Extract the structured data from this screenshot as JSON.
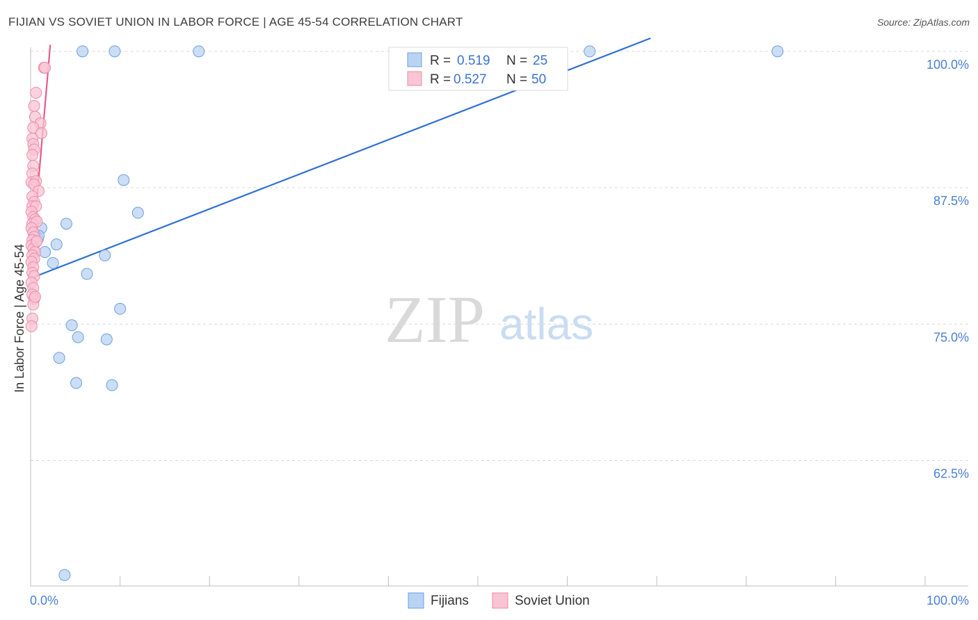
{
  "title": "FIJIAN VS SOVIET UNION IN LABOR FORCE | AGE 45-54 CORRELATION CHART",
  "source": "Source: ZipAtlas.com",
  "watermark": {
    "zip": "ZIP",
    "atlas": "atlas"
  },
  "colors": {
    "fijians_fill": "#b9d3f3",
    "fijians_stroke": "#6d9fdc",
    "fijians_line": "#2f6fd6",
    "soviet_fill": "#f9c4d4",
    "soviet_stroke": "#ee8ba8",
    "soviet_line": "#e8598a",
    "grid": "#d9d9d9",
    "tick_text": "#4a7fd4"
  },
  "legend_top": {
    "rows": [
      {
        "r_label": "R = ",
        "r_value": "0.519",
        "n_label": "N = ",
        "n_value": "25"
      },
      {
        "r_label": "R = ",
        "r_value": "0.527",
        "n_label": "N = ",
        "n_value": "50"
      }
    ]
  },
  "legend_bottom": {
    "items": [
      "Fijians",
      "Soviet Union"
    ]
  },
  "chart_data": {
    "type": "scatter",
    "title": "FIJIAN VS SOVIET UNION IN LABOR FORCE | AGE 45-54 CORRELATION CHART",
    "xlabel": "",
    "ylabel": "In Labor Force | Age 45-54",
    "xlim": [
      0,
      100
    ],
    "ylim": [
      51,
      101.2
    ],
    "x_tick_labels": [
      "0.0%",
      "100.0%"
    ],
    "y_ticks": [
      62.5,
      75.0,
      87.5,
      100.0
    ],
    "y_tick_labels": [
      "62.5%",
      "75.0%",
      "87.5%",
      "100.0%"
    ],
    "grid": true,
    "legend_position": "top-center",
    "series": [
      {
        "name": "Fijians",
        "points": [
          [
            5.8,
            100.0
          ],
          [
            9.4,
            100.0
          ],
          [
            18.8,
            100.0
          ],
          [
            62.5,
            100.0
          ],
          [
            83.5,
            100.0
          ],
          [
            10.4,
            88.2
          ],
          [
            12.0,
            85.2
          ],
          [
            4.0,
            84.2
          ],
          [
            1.2,
            83.8
          ],
          [
            0.5,
            83.2
          ],
          [
            0.8,
            82.8
          ],
          [
            2.9,
            82.3
          ],
          [
            1.6,
            81.6
          ],
          [
            8.3,
            81.3
          ],
          [
            2.5,
            80.6
          ],
          [
            6.3,
            79.6
          ],
          [
            10.0,
            76.4
          ],
          [
            4.6,
            74.9
          ],
          [
            5.3,
            73.8
          ],
          [
            8.5,
            73.6
          ],
          [
            3.2,
            71.9
          ],
          [
            5.1,
            69.6
          ],
          [
            9.1,
            69.4
          ],
          [
            3.8,
            52.0
          ],
          [
            0.9,
            83.1
          ]
        ],
        "trend": {
          "x": [
            0,
            69.3
          ],
          "y": [
            79.2,
            101.2
          ]
        }
      },
      {
        "name": "Soviet Union",
        "points": [
          [
            1.5,
            98.5
          ],
          [
            1.6,
            98.5
          ],
          [
            0.6,
            96.2
          ],
          [
            0.4,
            95.0
          ],
          [
            0.5,
            94.0
          ],
          [
            1.1,
            93.4
          ],
          [
            0.3,
            93.0
          ],
          [
            1.2,
            92.5
          ],
          [
            0.2,
            92.0
          ],
          [
            0.3,
            91.5
          ],
          [
            0.4,
            91.0
          ],
          [
            0.2,
            90.5
          ],
          [
            0.3,
            89.5
          ],
          [
            0.2,
            88.8
          ],
          [
            0.1,
            88.0
          ],
          [
            0.6,
            88.1
          ],
          [
            0.4,
            87.8
          ],
          [
            0.9,
            87.2
          ],
          [
            0.2,
            86.7
          ],
          [
            0.4,
            86.2
          ],
          [
            0.2,
            85.8
          ],
          [
            0.6,
            85.8
          ],
          [
            0.1,
            85.3
          ],
          [
            0.3,
            84.8
          ],
          [
            0.5,
            84.6
          ],
          [
            0.2,
            84.2
          ],
          [
            0.7,
            84.4
          ],
          [
            0.1,
            83.8
          ],
          [
            0.3,
            83.4
          ],
          [
            0.4,
            83.0
          ],
          [
            0.2,
            82.7
          ],
          [
            0.6,
            82.5
          ],
          [
            0.1,
            82.2
          ],
          [
            0.3,
            81.9
          ],
          [
            0.5,
            81.6
          ],
          [
            0.2,
            81.3
          ],
          [
            0.4,
            81.0
          ],
          [
            0.1,
            80.7
          ],
          [
            0.3,
            80.2
          ],
          [
            0.2,
            79.7
          ],
          [
            0.4,
            79.4
          ],
          [
            0.1,
            78.8
          ],
          [
            0.3,
            78.3
          ],
          [
            0.2,
            77.7
          ],
          [
            0.4,
            77.3
          ],
          [
            0.3,
            76.8
          ],
          [
            0.5,
            77.5
          ],
          [
            0.2,
            75.5
          ],
          [
            0.1,
            74.8
          ],
          [
            0.7,
            82.6
          ]
        ],
        "trend": {
          "x": [
            0.0,
            2.2
          ],
          "y": [
            79.8,
            100.6
          ]
        }
      }
    ]
  }
}
